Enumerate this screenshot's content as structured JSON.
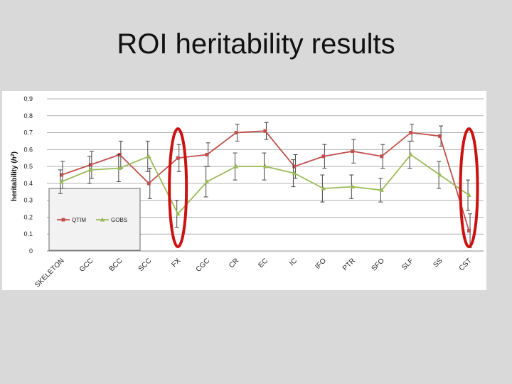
{
  "slide": {
    "title": "ROI heritability results"
  },
  "colors": {
    "qtim": "#c0504d",
    "gobs": "#9bbb59",
    "highlight": "#cc1111",
    "grid": "#b3b3b3",
    "error": "#444444"
  },
  "chart_data": {
    "type": "line",
    "ylabel_main": "heritability (",
    "ylabel_sym": "h",
    "ylabel_sup": "2",
    "ylabel_end": ")",
    "ylim": [
      0,
      0.9
    ],
    "yticks": [
      "0",
      "0.1",
      "0.2",
      "0.3",
      "0.4",
      "0.5",
      "0.6",
      "0.7",
      "0.8",
      "0.9"
    ],
    "grid": true,
    "legend_position": "bottom-left",
    "categories": [
      "SKELETON",
      "GCC",
      "BCC",
      "SCC",
      "FX",
      "CGC",
      "CR",
      "EC",
      "IC",
      "IFO",
      "PTR",
      "SFO",
      "SLF",
      "SS",
      "CST"
    ],
    "series": [
      {
        "name": "QTIM",
        "marker": "square",
        "values": [
          0.45,
          0.51,
          0.57,
          0.4,
          0.55,
          0.57,
          0.7,
          0.71,
          0.5,
          0.56,
          0.59,
          0.56,
          0.7,
          0.68,
          0.12
        ],
        "err": [
          0.08,
          0.08,
          0.08,
          0.09,
          0.08,
          0.07,
          0.05,
          0.05,
          0.07,
          0.07,
          0.07,
          0.07,
          0.05,
          0.06,
          0.1
        ]
      },
      {
        "name": "GOBS",
        "marker": "triangle",
        "values": [
          0.41,
          0.48,
          0.49,
          0.56,
          0.22,
          0.41,
          0.5,
          0.5,
          0.46,
          0.37,
          0.38,
          0.36,
          0.57,
          0.45,
          0.33
        ],
        "err": [
          0.07,
          0.08,
          0.08,
          0.09,
          0.08,
          0.09,
          0.08,
          0.08,
          0.08,
          0.08,
          0.07,
          0.07,
          0.08,
          0.08,
          0.09
        ]
      }
    ],
    "highlights": [
      "FX",
      "CST"
    ]
  }
}
